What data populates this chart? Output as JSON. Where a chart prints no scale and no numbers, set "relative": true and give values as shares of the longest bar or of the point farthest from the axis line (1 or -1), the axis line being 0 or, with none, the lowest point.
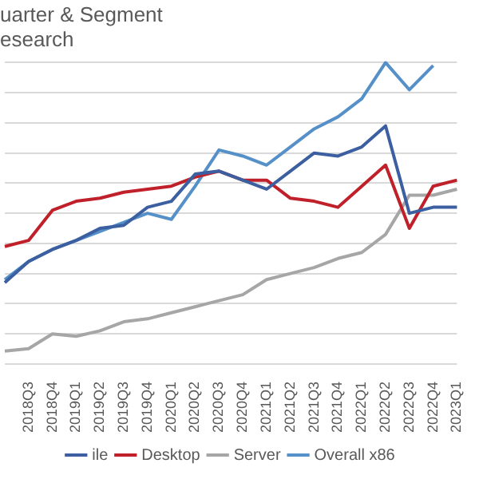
{
  "chart_data": {
    "type": "line",
    "title": "uarter & Segment",
    "subtitle": "esearch",
    "categories": [
      null,
      "2018Q3",
      "2018Q4",
      "2019Q1",
      "2019Q2",
      "2019Q3",
      "2019Q4",
      "2020Q1",
      "2020Q2",
      "2020Q3",
      "2020Q4",
      "2021Q1",
      "2021Q2",
      "2021Q3",
      "2021Q4",
      "2022Q1",
      "2022Q2",
      "2022Q3",
      "2022Q4",
      "2023Q1"
    ],
    "relative": true,
    "grid": "y",
    "legend": "bottom",
    "marker": "none",
    "line_style": "solid",
    "series": [
      {
        "name": "ile",
        "color": "#3b5fa0",
        "values": [
          0.27,
          0.34,
          0.38,
          0.41,
          0.45,
          0.46,
          0.52,
          0.54,
          0.63,
          0.64,
          0.61,
          0.58,
          0.64,
          0.7,
          0.69,
          0.72,
          0.79,
          0.5,
          0.52,
          0.52
        ]
      },
      {
        "name": "Desktop",
        "color": "#c0202a",
        "values": [
          0.39,
          0.41,
          0.51,
          0.54,
          0.55,
          0.57,
          0.58,
          0.59,
          0.62,
          0.64,
          0.61,
          0.61,
          0.55,
          0.54,
          0.52,
          0.59,
          0.66,
          0.45,
          0.59,
          0.61
        ]
      },
      {
        "name": "Server",
        "color": "#a6a6a6",
        "values": [
          0.043,
          0.051,
          0.1,
          0.092,
          0.11,
          0.14,
          0.15,
          0.17,
          0.19,
          0.21,
          0.23,
          0.28,
          0.3,
          0.32,
          0.35,
          0.37,
          0.43,
          0.56,
          0.56,
          0.58
        ]
      },
      {
        "name": "Overall x86",
        "color": "#5590c8",
        "values": [
          0.28,
          0.34,
          0.38,
          0.41,
          0.44,
          0.47,
          0.5,
          0.48,
          0.59,
          0.71,
          0.69,
          0.66,
          0.72,
          0.78,
          0.82,
          0.88,
          1,
          0.91,
          0.99,
          null
        ]
      }
    ]
  }
}
